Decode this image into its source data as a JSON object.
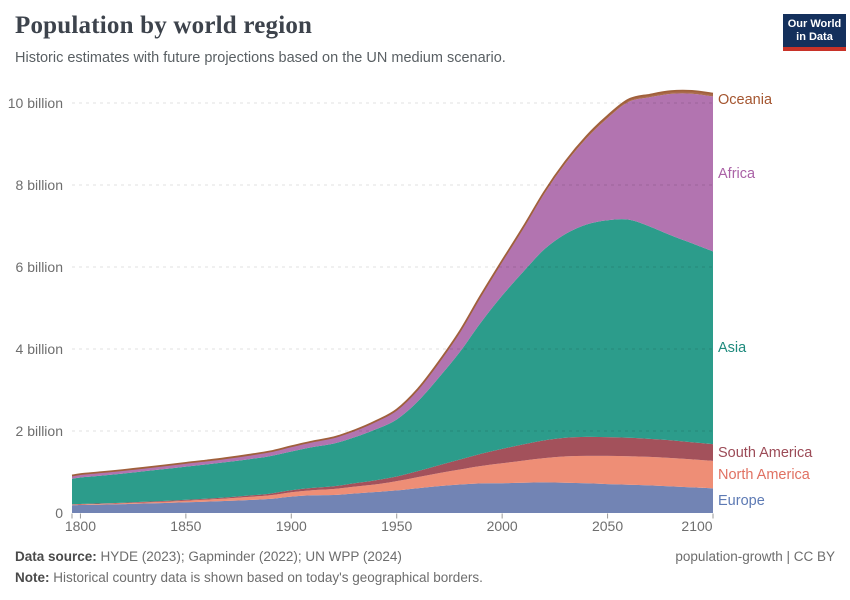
{
  "header": {
    "title": "Population by world region",
    "subtitle": "Historic estimates with future projections based on the UN medium scenario.",
    "logo": {
      "line1": "Our World",
      "line2": "in Data",
      "bg_color": "#14305c",
      "accent_color": "#c83228"
    }
  },
  "chart_data": {
    "type": "area",
    "stacked": true,
    "title": "Population by world region",
    "xlabel": "",
    "ylabel": "",
    "unit": "billion people",
    "grid": "dashed-horizontal",
    "legend_position": "right-edge-labels",
    "xlim": [
      1796,
      2100
    ],
    "ylim": [
      0,
      10.5
    ],
    "x": [
      1796,
      1800,
      1810,
      1820,
      1830,
      1840,
      1850,
      1860,
      1870,
      1880,
      1890,
      1900,
      1910,
      1920,
      1930,
      1940,
      1950,
      1960,
      1970,
      1980,
      1990,
      2000,
      2010,
      2020,
      2030,
      2040,
      2050,
      2060,
      2070,
      2080,
      2090,
      2100
    ],
    "series": [
      {
        "name": "Europe",
        "fill": "#7284b4",
        "label_color": "#5d7ab4",
        "values": [
          0.19,
          0.195,
          0.205,
          0.218,
          0.231,
          0.245,
          0.262,
          0.277,
          0.296,
          0.318,
          0.343,
          0.401,
          0.431,
          0.44,
          0.476,
          0.512,
          0.55,
          0.605,
          0.657,
          0.694,
          0.721,
          0.727,
          0.736,
          0.746,
          0.74,
          0.725,
          0.705,
          0.69,
          0.672,
          0.65,
          0.625,
          0.6
        ]
      },
      {
        "name": "North America",
        "fill": "#ee8e76",
        "label_color": "#e07162",
        "values": [
          0.012,
          0.013,
          0.016,
          0.02,
          0.025,
          0.031,
          0.039,
          0.049,
          0.061,
          0.075,
          0.09,
          0.106,
          0.125,
          0.145,
          0.167,
          0.185,
          0.227,
          0.27,
          0.315,
          0.368,
          0.426,
          0.486,
          0.542,
          0.594,
          0.64,
          0.668,
          0.687,
          0.695,
          0.696,
          0.692,
          0.682,
          0.67
        ]
      },
      {
        "name": "South America",
        "fill": "#a3515b",
        "label_color": "#9c4b57",
        "values": [
          0.011,
          0.012,
          0.013,
          0.014,
          0.016,
          0.018,
          0.021,
          0.025,
          0.029,
          0.034,
          0.04,
          0.047,
          0.057,
          0.068,
          0.083,
          0.102,
          0.114,
          0.148,
          0.193,
          0.242,
          0.297,
          0.35,
          0.394,
          0.431,
          0.455,
          0.463,
          0.459,
          0.452,
          0.44,
          0.43,
          0.42,
          0.41
        ]
      },
      {
        "name": "Asia",
        "fill": "#2c9c8b",
        "label_color": "#1e8a7d",
        "values": [
          0.62,
          0.646,
          0.679,
          0.71,
          0.744,
          0.778,
          0.809,
          0.834,
          0.86,
          0.886,
          0.915,
          0.947,
          0.994,
          1.04,
          1.12,
          1.24,
          1.39,
          1.7,
          2.14,
          2.63,
          3.21,
          3.74,
          4.21,
          4.66,
          4.97,
          5.18,
          5.29,
          5.32,
          5.18,
          5.0,
          4.85,
          4.7
        ]
      },
      {
        "name": "Africa",
        "fill": "#b274b0",
        "label_color": "#aa62a6",
        "values": [
          0.08,
          0.081,
          0.082,
          0.083,
          0.085,
          0.087,
          0.09,
          0.093,
          0.097,
          0.102,
          0.11,
          0.12,
          0.131,
          0.143,
          0.162,
          0.188,
          0.228,
          0.284,
          0.365,
          0.481,
          0.638,
          0.819,
          1.055,
          1.36,
          1.72,
          2.1,
          2.49,
          2.87,
          3.15,
          3.45,
          3.65,
          3.78
        ]
      },
      {
        "name": "Oceania",
        "fill": "#aa6b4d",
        "label_color": "#a4552f",
        "top_stroke": "#a0603c",
        "values": [
          0.002,
          0.002,
          0.002,
          0.002,
          0.002,
          0.002,
          0.002,
          0.003,
          0.003,
          0.004,
          0.005,
          0.006,
          0.007,
          0.009,
          0.01,
          0.011,
          0.013,
          0.016,
          0.02,
          0.023,
          0.027,
          0.031,
          0.037,
          0.044,
          0.049,
          0.054,
          0.058,
          0.062,
          0.065,
          0.067,
          0.068,
          0.069
        ]
      }
    ],
    "yticks": [
      {
        "v": 0,
        "label": "0"
      },
      {
        "v": 2,
        "label": "2 billion"
      },
      {
        "v": 4,
        "label": "4 billion"
      },
      {
        "v": 6,
        "label": "6 billion"
      },
      {
        "v": 8,
        "label": "8 billion"
      },
      {
        "v": 10,
        "label": "10 billion"
      }
    ],
    "xticks": [
      {
        "v": 1800,
        "label": "1800"
      },
      {
        "v": 1850,
        "label": "1850"
      },
      {
        "v": 1900,
        "label": "1900"
      },
      {
        "v": 1950,
        "label": "1950"
      },
      {
        "v": 2000,
        "label": "2000"
      },
      {
        "v": 2050,
        "label": "2050"
      },
      {
        "v": 2100,
        "label": "2100"
      }
    ]
  },
  "footer": {
    "data_source_label": "Data source:",
    "data_source_value": " HYDE (2023); Gapminder (2022); UN WPP (2024)",
    "note_label": "Note:",
    "note_value": " Historical country data is shown based on today's geographical borders.",
    "license": "population-growth | CC BY"
  }
}
